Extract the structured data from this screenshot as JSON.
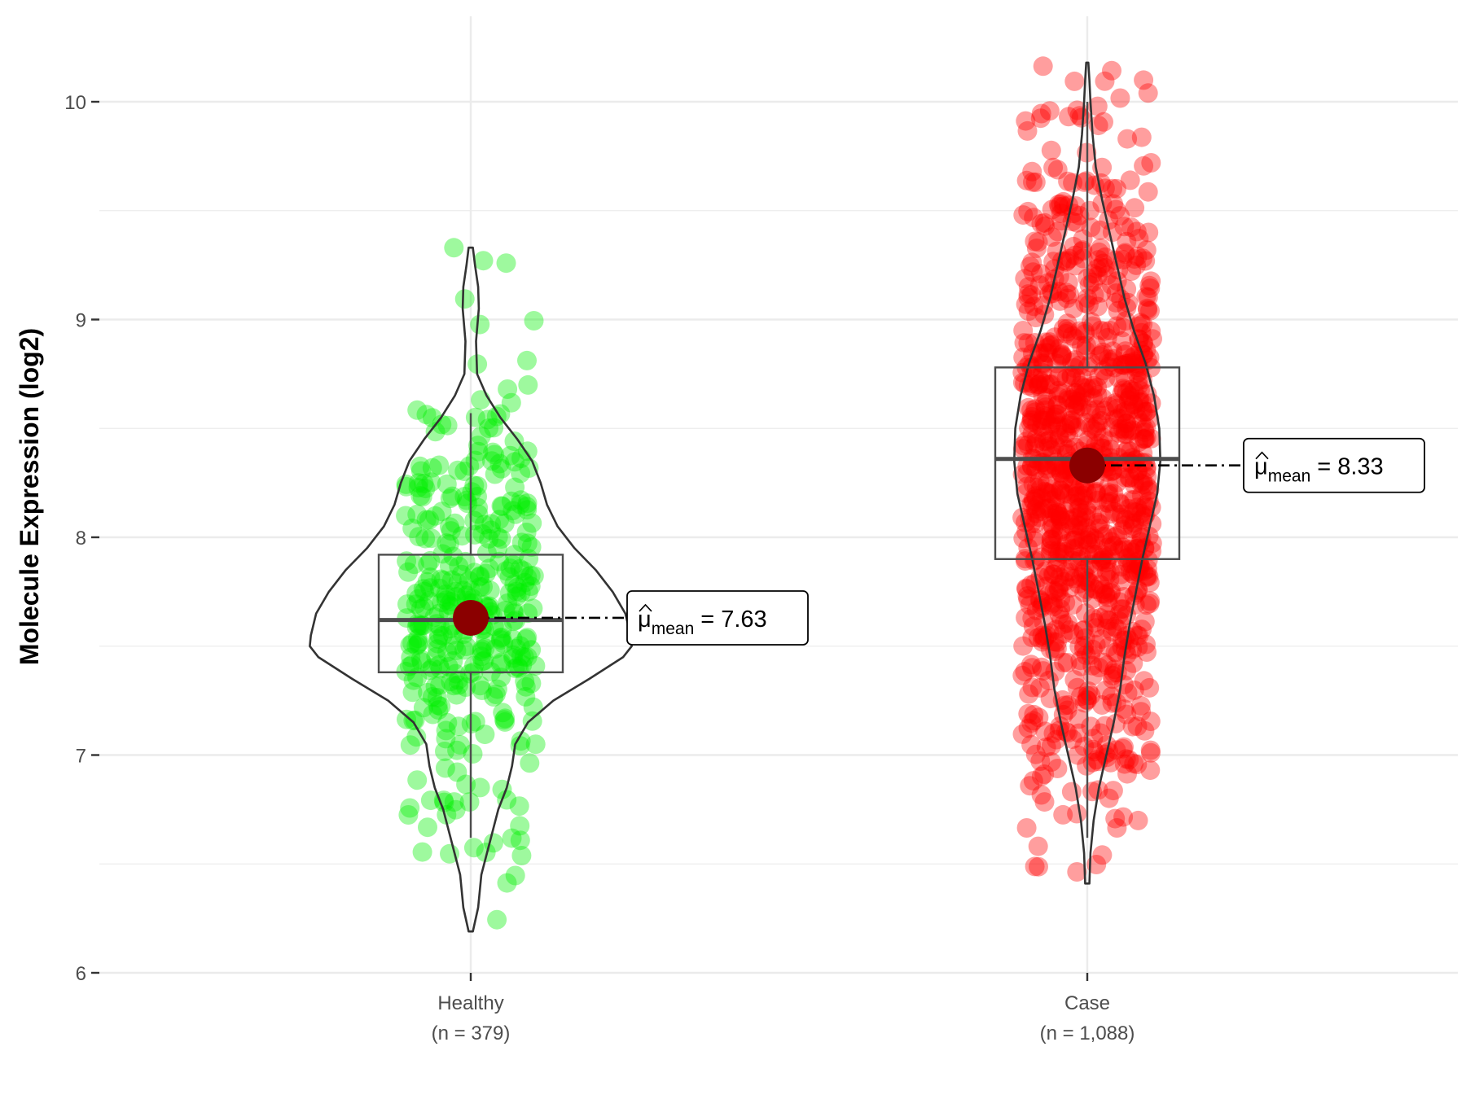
{
  "chart_data": {
    "type": "violin",
    "ylabel": "Molecule Expression (log2)",
    "xlabel": "",
    "ylim": [
      5.95,
      10.45
    ],
    "y_ticks": [
      "6",
      "7",
      "8",
      "9",
      "10"
    ],
    "y_tick_values": [
      6,
      7,
      8,
      9,
      10
    ],
    "y_minor_tick_values": [
      6.5,
      7.5,
      8.5,
      9.5
    ],
    "groups": [
      {
        "name": "Healthy",
        "n_label": "(n = 379)",
        "n": 379,
        "point_color": "#00ee00",
        "box": {
          "q1": 7.38,
          "median": 7.62,
          "q3": 7.92,
          "whisker_low": 6.62,
          "whisker_high": 8.57
        },
        "mean": 7.63,
        "mean_label": "7.63",
        "point_min": 6.18,
        "point_max": 9.33,
        "violin": [
          [
            6.19,
            0.1
          ],
          [
            6.3,
            0.35
          ],
          [
            6.45,
            0.5
          ],
          [
            6.6,
            0.9
          ],
          [
            6.75,
            1.3
          ],
          [
            6.85,
            1.7
          ],
          [
            6.95,
            1.95
          ],
          [
            7.05,
            2.1
          ],
          [
            7.15,
            2.7
          ],
          [
            7.25,
            3.9
          ],
          [
            7.35,
            5.6
          ],
          [
            7.45,
            7.2
          ],
          [
            7.5,
            7.6
          ],
          [
            7.55,
            7.55
          ],
          [
            7.65,
            7.3
          ],
          [
            7.75,
            6.7
          ],
          [
            7.85,
            5.9
          ],
          [
            7.95,
            4.9
          ],
          [
            8.05,
            4.1
          ],
          [
            8.15,
            3.6
          ],
          [
            8.25,
            3.3
          ],
          [
            8.35,
            2.9
          ],
          [
            8.45,
            2.2
          ],
          [
            8.55,
            1.4
          ],
          [
            8.65,
            0.75
          ],
          [
            8.75,
            0.3
          ],
          [
            8.9,
            0.25
          ],
          [
            9.05,
            0.38
          ],
          [
            9.15,
            0.35
          ],
          [
            9.25,
            0.2
          ],
          [
            9.33,
            0.1
          ]
        ]
      },
      {
        "name": "Case",
        "n_label": "(n = 1,088)",
        "n": 1088,
        "point_color": "#ff0000",
        "box": {
          "q1": 7.9,
          "median": 8.36,
          "q3": 8.78,
          "whisker_low": 6.62,
          "whisker_high": 10.0
        },
        "mean": 8.33,
        "mean_label": "8.33",
        "point_min": 6.41,
        "point_max": 10.2,
        "violin": [
          [
            6.41,
            0.1
          ],
          [
            6.55,
            0.15
          ],
          [
            6.7,
            0.3
          ],
          [
            6.85,
            0.55
          ],
          [
            7.0,
            0.9
          ],
          [
            7.15,
            1.25
          ],
          [
            7.3,
            1.55
          ],
          [
            7.45,
            1.75
          ],
          [
            7.6,
            2.0
          ],
          [
            7.75,
            2.3
          ],
          [
            7.9,
            2.6
          ],
          [
            8.05,
            2.95
          ],
          [
            8.2,
            3.3
          ],
          [
            8.35,
            3.45
          ],
          [
            8.5,
            3.4
          ],
          [
            8.65,
            3.15
          ],
          [
            8.8,
            2.75
          ],
          [
            8.95,
            2.2
          ],
          [
            9.1,
            1.75
          ],
          [
            9.25,
            1.4
          ],
          [
            9.4,
            1.05
          ],
          [
            9.55,
            0.7
          ],
          [
            9.7,
            0.4
          ],
          [
            9.85,
            0.25
          ],
          [
            10.0,
            0.15
          ],
          [
            10.1,
            0.1
          ],
          [
            10.18,
            0.05
          ]
        ]
      }
    ],
    "mean_annotation_prefix": "μ",
    "mean_annotation_sub": "mean",
    "mean_annotation_eq": "=",
    "mean_point_color": "#8b0000"
  }
}
